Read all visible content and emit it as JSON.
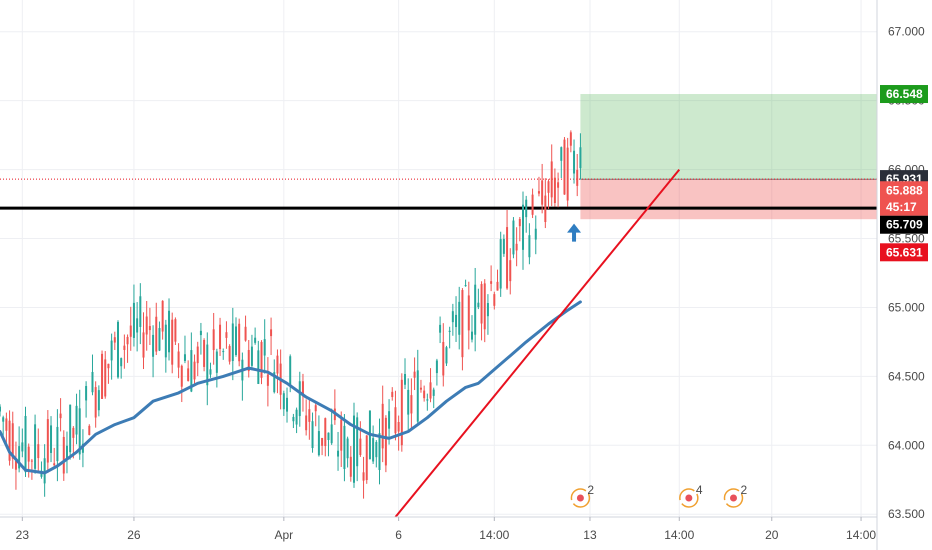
{
  "chart_data": {
    "type": "candlestick",
    "y_ticks": [
      "67.000",
      "66.500",
      "66.000",
      "65.500",
      "65.000",
      "64.500",
      "64.000",
      "63.500"
    ],
    "ylim": [
      63.48,
      67.23
    ],
    "x_ticks": [
      {
        "label": "23",
        "i": 7
      },
      {
        "label": "26",
        "i": 42
      },
      {
        "label": "Apr",
        "i": 89
      },
      {
        "label": "6",
        "i": 125
      },
      {
        "label": "14:00",
        "i": 155
      },
      {
        "label": "13",
        "i": 185
      },
      {
        "label": "14:00",
        "i": 213
      },
      {
        "label": "20",
        "i": 242
      },
      {
        "label": "14:00",
        "i": 270
      }
    ],
    "x_index_range": [
      0,
      275
    ],
    "price_tags": [
      {
        "label": "66.548",
        "value": 66.548,
        "bg": "#1c9b1c",
        "fg": "#ffffff"
      },
      {
        "label": "65.931",
        "value": 65.931,
        "bg": "#2a2e39",
        "fg": "#ffffff"
      },
      {
        "label": "65.888",
        "value": 65.85,
        "bg": "#ef5350",
        "fg": "#ffffff"
      },
      {
        "label": "45:17",
        "value": 65.73,
        "bg": "#ef5350",
        "fg": "#ffffff"
      },
      {
        "label": "65.709",
        "value": 65.6,
        "bg": "#000000",
        "fg": "#ffffff"
      },
      {
        "label": "65.631",
        "value": 65.4,
        "bg": "#e8111f",
        "fg": "#ffffff"
      }
    ],
    "event_markers": [
      {
        "label": "2",
        "i": 182
      },
      {
        "label": "4",
        "i": 216
      },
      {
        "label": "2",
        "i": 230
      }
    ],
    "moving_average": [
      [
        0,
        64.1
      ],
      [
        3,
        63.95
      ],
      [
        8,
        63.82
      ],
      [
        14,
        63.8
      ],
      [
        18,
        63.85
      ],
      [
        24,
        63.95
      ],
      [
        30,
        64.08
      ],
      [
        36,
        64.15
      ],
      [
        42,
        64.2
      ],
      [
        48,
        64.32
      ],
      [
        56,
        64.38
      ],
      [
        62,
        64.45
      ],
      [
        70,
        64.5
      ],
      [
        78,
        64.56
      ],
      [
        84,
        64.53
      ],
      [
        90,
        64.45
      ],
      [
        96,
        64.35
      ],
      [
        104,
        64.25
      ],
      [
        110,
        64.15
      ],
      [
        116,
        64.08
      ],
      [
        122,
        64.05
      ],
      [
        128,
        64.1
      ],
      [
        134,
        64.2
      ],
      [
        140,
        64.32
      ],
      [
        146,
        64.42
      ],
      [
        150,
        64.45
      ],
      [
        155,
        64.55
      ],
      [
        160,
        64.65
      ],
      [
        165,
        64.75
      ],
      [
        172,
        64.88
      ],
      [
        178,
        64.98
      ],
      [
        182,
        65.04
      ]
    ],
    "trendline": {
      "from": [
        124,
        63.48
      ],
      "to": [
        213,
        66.0
      ],
      "color": "#e8111f"
    },
    "support_line": {
      "value": 65.72,
      "color": "#000000"
    },
    "dotted_line": {
      "value": 65.931,
      "color": "#e8111f"
    },
    "long_position": {
      "i_from": 182,
      "i_to": 275,
      "entry": 65.93,
      "target": 66.548,
      "stop": 65.64
    },
    "arrow": {
      "i": 180,
      "value": 65.55,
      "color": "#2f7dc1"
    },
    "colors": {
      "up": "#26a69a",
      "down": "#ef5350",
      "ma": "#3d7cb5",
      "grid": "#eeeff3"
    }
  }
}
